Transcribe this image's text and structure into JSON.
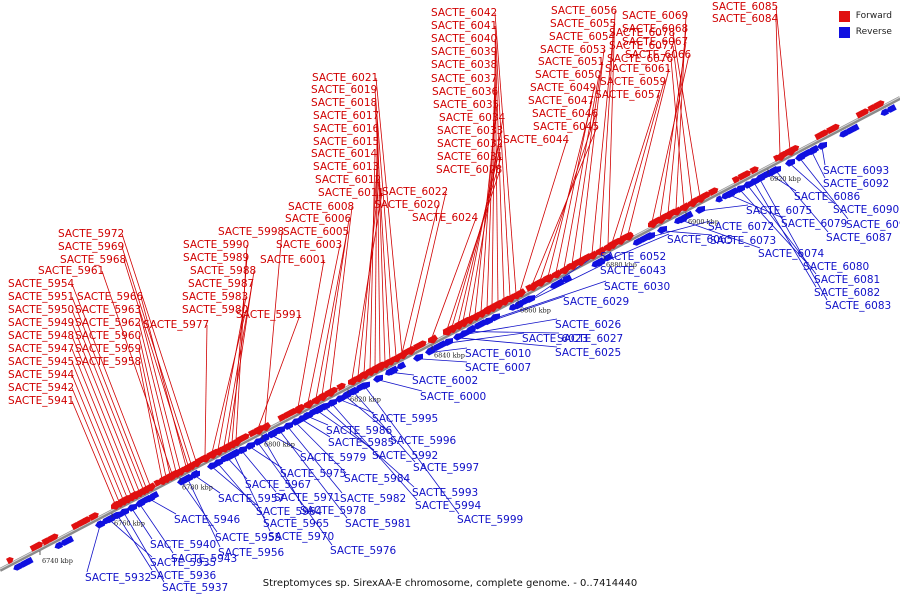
{
  "caption": "Streptomyces sp. SirexAA-E chromosome, complete genome. - 0..7414440",
  "legend": [
    {
      "label": "Forward",
      "color": "#e01010"
    },
    {
      "label": "Reverse",
      "color": "#1010e0"
    }
  ],
  "colors": {
    "forward": "#e01010",
    "reverse": "#1010e0",
    "forward_label": "#d00000",
    "reverse_label": "#1010c8",
    "backbone": "#8a8a8a"
  },
  "ticks": [
    "6740 kbp",
    "6760 kbp",
    "6780 kbp",
    "6800 kbp",
    "6820 kbp",
    "6840 kbp",
    "6860 kbp",
    "6880 kbp",
    "6900 kbp",
    "6920 kbp"
  ],
  "forward_genes": [
    "SACTE_5941",
    "SACTE_5942",
    "SACTE_5944",
    "SACTE_5945",
    "SACTE_5947",
    "SACTE_5948",
    "SACTE_5949",
    "SACTE_5950",
    "SACTE_5951",
    "SACTE_5954",
    "SACTE_5958",
    "SACTE_5959",
    "SACTE_5960",
    "SACTE_5961",
    "SACTE_5962",
    "SACTE_5963",
    "SACTE_5966",
    "SACTE_5968",
    "SACTE_5969",
    "SACTE_5972",
    "SACTE_5977",
    "SACTE_5980",
    "SACTE_5983",
    "SACTE_5987",
    "SACTE_5988",
    "SACTE_5989",
    "SACTE_5990",
    "SACTE_5991",
    "SACTE_5998",
    "SACTE_6001",
    "SACTE_6003",
    "SACTE_6005",
    "SACTE_6006",
    "SACTE_6008",
    "SACTE_6011",
    "SACTE_6012",
    "SACTE_6013",
    "SACTE_6014",
    "SACTE_6015",
    "SACTE_6016",
    "SACTE_6017",
    "SACTE_6018",
    "SACTE_6019",
    "SACTE_6020",
    "SACTE_6021",
    "SACTE_6022",
    "SACTE_6024",
    "SACTE_6028",
    "SACTE_6031",
    "SACTE_6032",
    "SACTE_6033",
    "SACTE_6034",
    "SACTE_6035",
    "SACTE_6036",
    "SACTE_6037",
    "SACTE_6038",
    "SACTE_6039",
    "SACTE_6040",
    "SACTE_6041",
    "SACTE_6042",
    "SACTE_6044",
    "SACTE_6045",
    "SACTE_6046",
    "SACTE_6047",
    "SACTE_6049",
    "SACTE_6050",
    "SACTE_6051",
    "SACTE_6053",
    "SACTE_6054",
    "SACTE_6055",
    "SACTE_6056",
    "SACTE_6057",
    "SACTE_6059",
    "SACTE_6061",
    "SACTE_6066",
    "SACTE_6067",
    "SACTE_6068",
    "SACTE_6069",
    "SACTE_6076",
    "SACTE_6077",
    "SACTE_6078",
    "SACTE_6084",
    "SACTE_6085"
  ],
  "reverse_genes": [
    "SACTE_5932",
    "SACTE_5935",
    "SACTE_5936",
    "SACTE_5937",
    "SACTE_5940",
    "SACTE_5943",
    "SACTE_5946",
    "SACTE_5955",
    "SACTE_5956",
    "SACTE_5957",
    "SACTE_5964",
    "SACTE_5965",
    "SACTE_5967",
    "SACTE_5970",
    "SACTE_5971",
    "SACTE_5975",
    "SACTE_5976",
    "SACTE_5978",
    "SACTE_5979",
    "SACTE_5981",
    "SACTE_5982",
    "SACTE_5984",
    "SACTE_5985",
    "SACTE_5986",
    "SACTE_5992",
    "SACTE_5993",
    "SACTE_5994",
    "SACTE_5995",
    "SACTE_5996",
    "SACTE_5997",
    "SACTE_5999",
    "SACTE_6000",
    "SACTE_6002",
    "SACTE_6007",
    "SACTE_6010",
    "SACTE_6023",
    "SACTE_6025",
    "SACTE_6026",
    "SACTE_6027",
    "SACTE_6029",
    "SACTE_6030",
    "SACTE_6043",
    "SACTE_6052",
    "SACTE_6065",
    "SACTE_6072",
    "SACTE_6073",
    "SACTE_6074",
    "SACTE_6075",
    "SACTE_6079",
    "SACTE_6080",
    "SACTE_6081",
    "SACTE_6082",
    "SACTE_6083",
    "SACTE_6086",
    "SACTE_6087",
    "SACTE_6090",
    "SACTE_6091",
    "SACTE_6092",
    "SACTE_6093"
  ]
}
